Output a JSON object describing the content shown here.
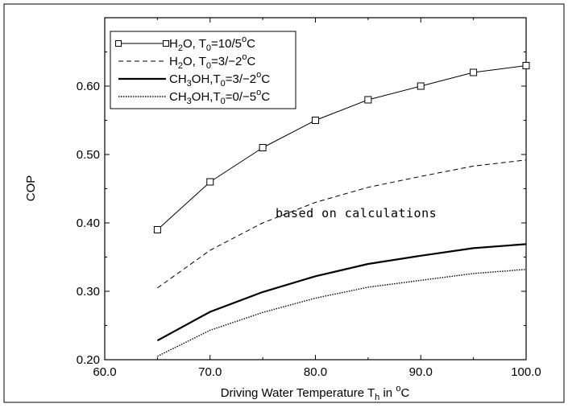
{
  "chart_data": {
    "type": "line",
    "xlabel": {
      "main": "Driving Water Temperature T",
      "sub": "h",
      "mid": " in ",
      "sup": "o",
      "end": "C"
    },
    "ylabel": "COP",
    "xlim": [
      60,
      100
    ],
    "ylim": [
      0.2,
      0.7
    ],
    "xticks": [
      60,
      70,
      80,
      90,
      100
    ],
    "xtick_labels": [
      "60.0",
      "70.0",
      "80.0",
      "90.0",
      "100.0"
    ],
    "yticks": [
      0.2,
      0.3,
      0.4,
      0.5,
      0.6
    ],
    "ytick_labels": [
      "0.20",
      "0.30",
      "0.40",
      "0.50",
      "0.60"
    ],
    "grid": false,
    "legend_placement": "top-left",
    "annotation": "based on calculations",
    "x": [
      65,
      70,
      75,
      80,
      85,
      90,
      95,
      100
    ],
    "series": [
      {
        "name": "H2O, T0=10/5°C",
        "legend": {
          "a": "H",
          "b": "2",
          "c": "O, T",
          "d": "0",
          "e": "=10/5",
          "f": "o",
          "g": "C"
        },
        "values": [
          0.39,
          0.46,
          0.51,
          0.55,
          0.58,
          0.6,
          0.62,
          0.63
        ],
        "style": "solid-markers",
        "color": "#000000"
      },
      {
        "name": "H2O, T0=3/-2°C",
        "legend": {
          "a": "H",
          "b": "2",
          "c": "O, T",
          "d": "0",
          "e": "=3/−2",
          "f": "o",
          "g": "C"
        },
        "values": [
          0.305,
          0.36,
          0.4,
          0.43,
          0.452,
          0.468,
          0.483,
          0.492
        ],
        "style": "dashed",
        "color": "#000000"
      },
      {
        "name": "CH3OH,T0=3/-2°C",
        "legend": {
          "a": "CH",
          "b": "3",
          "c": "OH,T",
          "d": "0",
          "e": "=3/−2",
          "f": "o",
          "g": "C"
        },
        "values": [
          0.228,
          0.27,
          0.299,
          0.322,
          0.34,
          0.352,
          0.363,
          0.369
        ],
        "style": "thick",
        "color": "#000000"
      },
      {
        "name": "CH3OH,T0=0/-5°C",
        "legend": {
          "a": "CH",
          "b": "3",
          "c": "OH,T",
          "d": "0",
          "e": "=0/−5",
          "f": "o",
          "g": "C"
        },
        "values": [
          0.205,
          0.243,
          0.269,
          0.29,
          0.306,
          0.316,
          0.326,
          0.332
        ],
        "style": "dotted",
        "color": "#000000"
      }
    ]
  }
}
